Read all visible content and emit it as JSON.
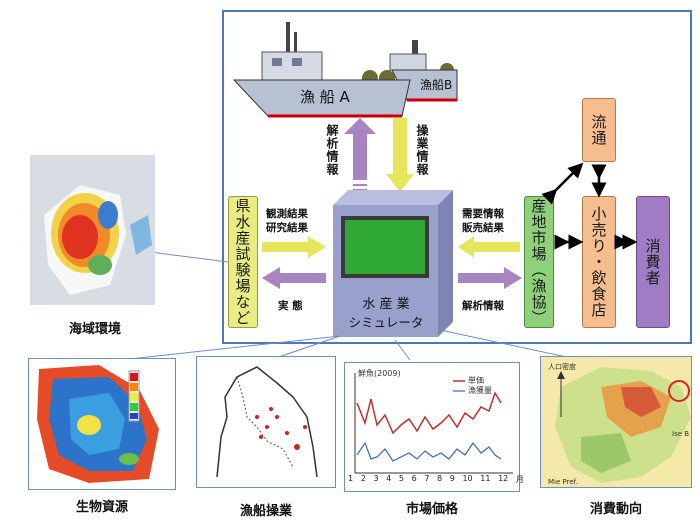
{
  "boats": {
    "a": "漁 船 A",
    "b": "漁船B"
  },
  "arrows": {
    "analysis_up": "解析情報",
    "operation_down": "操業情報",
    "obs_research": [
      "観測結果",
      "研究結果"
    ],
    "actual": "実 態",
    "demand_sales": [
      "需要情報",
      "販売結果"
    ],
    "analysis_right": "解析情報"
  },
  "boxes": {
    "prefecture": "県水産試験場など",
    "market": "産地市場（漁協）",
    "distribution": "流通",
    "retail": "小売り・飲食店",
    "consumer": "消費者"
  },
  "simulator": {
    "line1": "水 産 業",
    "line2": "シミュレータ"
  },
  "captions": {
    "sea": "海域環境",
    "bio": "生物資源",
    "fishing": "漁船操業",
    "price": "市場価格",
    "consumption": "消費動向"
  },
  "price_chart": {
    "title": "鮮魚(2009)",
    "legend": [
      "単価",
      "漁獲量"
    ],
    "ticks": [
      "1",
      "2",
      "3",
      "4",
      "5",
      "6",
      "7",
      "8",
      "9",
      "10",
      "11",
      "12"
    ],
    "unit": "月"
  },
  "map_labels": {
    "legend_title": "人口密度",
    "ise": "Ise B",
    "mie": "Mie Pref."
  },
  "colors": {
    "frame": "#4a78b8",
    "analysis_arrow": "#a884c0",
    "data_arrow": "#e6e65a",
    "prefecture": "#e8ec82",
    "market": "#8fd07a",
    "orange": "#f6bd8f",
    "purple": "#a07cc4",
    "simulator": "#9aa0cc"
  }
}
